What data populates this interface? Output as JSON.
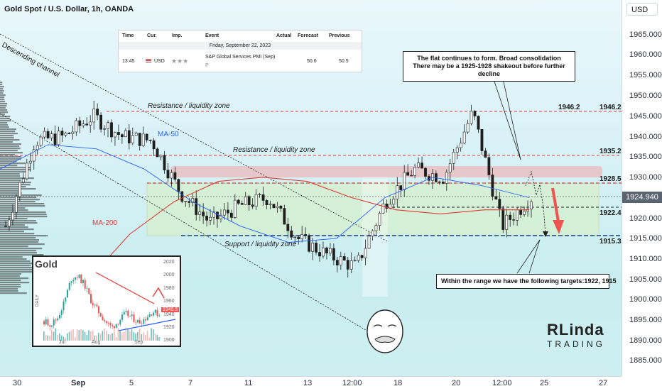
{
  "header": {
    "symbol_title": "Gold Spot / U.S. Dollar, 1h, OANDA",
    "currency_button": "USD"
  },
  "price_axis": {
    "ticks": [
      "1965.000",
      "1960.000",
      "1955.000",
      "1950.000",
      "1945.000",
      "1940.000",
      "1935.000",
      "1930.000",
      "1920.000",
      "1915.000",
      "1910.000",
      "1905.000",
      "1900.000",
      "1895.000",
      "1890.000",
      "1885.000"
    ],
    "current_price": "1924.940"
  },
  "time_axis": {
    "ticks": [
      "30",
      "Sep",
      "5",
      "7",
      "11",
      "13",
      "12:00",
      "18",
      "20",
      "12:00",
      "25",
      "27"
    ]
  },
  "calendar": {
    "headers": [
      "Time",
      "Cur.",
      "Imp.",
      "Event",
      "Actual",
      "Forecast",
      "Previous"
    ],
    "date_row": "Friday, September 22, 2023",
    "time": "13:45",
    "currency": "USD",
    "importance": "★★★",
    "event": "S&P Global Services PMI (Sep)",
    "event_sub": "P",
    "actual": "",
    "forecast": "50.6",
    "previous": "50.5"
  },
  "annotations": {
    "descending_channel": "Descending channel",
    "resistance_upper": "Resistance / liquidity zone",
    "resistance_mid": "Resistance / liquidity zone",
    "support": "Support / liquidity zone",
    "ma50": "MA-50",
    "ma200": "MA-200",
    "level_1946": "1946.2",
    "level_1946_axis": "1946.2",
    "level_1935": "1935.2",
    "level_1928": "1928.5",
    "level_1922": "1922.4",
    "level_1915": "1915.3",
    "note_top": "The flat continues to form. Broad consolidation\nThere may be a 1925-1928 shakeout before further decline",
    "note_bottom": "Within the range we have the following targets:1922, 1915"
  },
  "inset": {
    "title": "Gold",
    "y_ticks": [
      "2020",
      "2000",
      "1980",
      "1960",
      "1940",
      "1920",
      "1900"
    ],
    "x_ticks": [
      "Jul",
      "Aug",
      "Sep"
    ],
    "side_label": "DAILY",
    "price_tag": "1945.5"
  },
  "logo": {
    "main": "RLinda",
    "sub": "TRADING"
  },
  "colors": {
    "up": "#26a69a",
    "down": "#ef5350",
    "candle": "#1e1e1e",
    "ma50": "#2962ff",
    "ma200": "#e53935",
    "resistance_zone": "#f4a6a6",
    "range_box": "#d8f0c0"
  },
  "chart_data": {
    "type": "candlestick",
    "title": "Gold Spot / U.S. Dollar, 1h, OANDA",
    "ylim": [
      1881,
      1968
    ],
    "x_ticks": [
      "30",
      "Sep",
      "5",
      "7",
      "11",
      "13",
      "12:00",
      "18",
      "20",
      "12:00",
      "25",
      "27"
    ],
    "close_path": [
      {
        "x": "Aug 29",
        "y": 1918
      },
      {
        "x": "Aug 30",
        "y": 1939
      },
      {
        "x": "Aug 31",
        "y": 1940
      },
      {
        "x": "Sep 1",
        "y": 1945
      },
      {
        "x": "Sep 4",
        "y": 1940
      },
      {
        "x": "Sep 5",
        "y": 1939
      },
      {
        "x": "Sep 6",
        "y": 1926
      },
      {
        "x": "Sep 7",
        "y": 1919
      },
      {
        "x": "Sep 8",
        "y": 1923
      },
      {
        "x": "Sep 11",
        "y": 1925
      },
      {
        "x": "Sep 12",
        "y": 1915
      },
      {
        "x": "Sep 13",
        "y": 1911
      },
      {
        "x": "Sep 14",
        "y": 1908
      },
      {
        "x": "Sep 15",
        "y": 1924
      },
      {
        "x": "Sep 18",
        "y": 1932
      },
      {
        "x": "Sep 19",
        "y": 1930
      },
      {
        "x": "Sep 20",
        "y": 1946
      },
      {
        "x": "Sep 21",
        "y": 1918
      },
      {
        "x": "Sep 22",
        "y": 1925
      }
    ],
    "levels": [
      {
        "label": "1946.2",
        "value": 1946.2
      },
      {
        "label": "1935.2",
        "value": 1935.2
      },
      {
        "label": "1928.5",
        "value": 1928.5
      },
      {
        "label": "1922.4",
        "value": 1922.4
      },
      {
        "label": "1915.3",
        "value": 1915.3
      }
    ],
    "series": [
      {
        "name": "MA-50",
        "values": [
          1932,
          1938,
          1937,
          1932,
          1924,
          1918,
          1914,
          1915,
          1925,
          1930,
          1928,
          1925
        ]
      },
      {
        "name": "MA-200",
        "values": [
          1904,
          1916,
          1924,
          1929,
          1930,
          1929,
          1925,
          1922,
          1921,
          1922,
          1922
        ]
      }
    ],
    "current_price": 1924.94
  }
}
